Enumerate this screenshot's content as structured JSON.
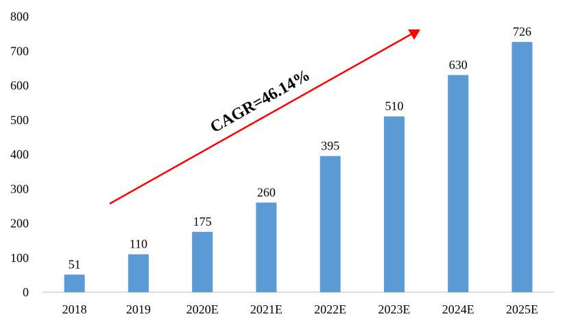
{
  "chart_data": {
    "type": "bar",
    "categories": [
      "2018",
      "2019",
      "2020E",
      "2021E",
      "2022E",
      "2023E",
      "2024E",
      "2025E"
    ],
    "values": [
      51,
      110,
      175,
      260,
      395,
      510,
      630,
      726
    ],
    "data_labels": [
      "51",
      "110",
      "175",
      "260",
      "395",
      "510",
      "630",
      "726"
    ],
    "y_ticks": [
      "0",
      "100",
      "200",
      "300",
      "400",
      "500",
      "600",
      "700",
      "800"
    ],
    "ylim": [
      0,
      800
    ],
    "title": "",
    "xlabel": "",
    "ylabel": "",
    "grid": false,
    "bar_color": "#5B9BD5",
    "annotation": {
      "text": "CAGR=46.14%",
      "arrow_color": "#FF0000"
    }
  }
}
